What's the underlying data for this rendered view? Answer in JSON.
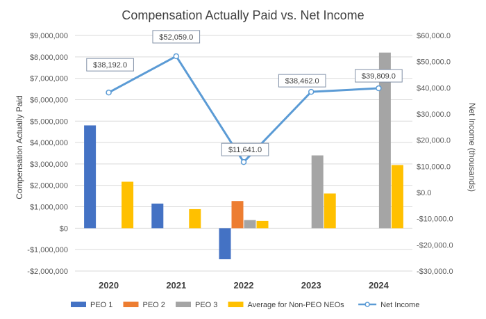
{
  "chart_data": {
    "type": "bar",
    "title": "Compensation Actually Paid vs. Net Income",
    "categories": [
      "2020",
      "2021",
      "2022",
      "2023",
      "2024"
    ],
    "ylabel": "Compensation Actually Paid",
    "y2label": "Net Income (thousands)",
    "ylim": [
      -2000000,
      9000000
    ],
    "y2lim": [
      -30000,
      60000
    ],
    "yticks": [
      9000000,
      8000000,
      7000000,
      6000000,
      5000000,
      4000000,
      3000000,
      2000000,
      1000000,
      0,
      -1000000,
      -2000000
    ],
    "ytick_labels": [
      "$9,000,000",
      "$8,000,000",
      "$7,000,000",
      "$6,000,000",
      "$5,000,000",
      "$4,000,000",
      "$3,000,000",
      "$2,000,000",
      "$1,000,000",
      "$0",
      "-$1,000,000",
      "-$2,000,000"
    ],
    "y2ticks": [
      60000,
      50000,
      40000,
      30000,
      20000,
      10000,
      0,
      -10000,
      -20000,
      -30000
    ],
    "y2tick_labels": [
      "$60,000.0",
      "$50,000.0",
      "$40,000.0",
      "$30,000.0",
      "$20,000.0",
      "$10,000.0",
      "$0.0",
      "-$10,000.0",
      "-$20,000.0",
      "-$30,000.0"
    ],
    "grid": true,
    "legend_position": "bottom",
    "series": [
      {
        "name": "PEO 1",
        "color": "#4472C4",
        "values": [
          4800000,
          1150000,
          -1450000,
          null,
          null
        ]
      },
      {
        "name": "PEO 2",
        "color": "#ED7D31",
        "values": [
          null,
          null,
          1270000,
          null,
          null
        ]
      },
      {
        "name": "PEO 3",
        "color": "#A5A5A5",
        "values": [
          null,
          null,
          380000,
          3400000,
          8200000
        ]
      },
      {
        "name": "Average for Non-PEO NEOs",
        "color": "#FFC000",
        "values": [
          2170000,
          890000,
          340000,
          1620000,
          2950000
        ]
      }
    ],
    "line_series": {
      "name": "Net Income",
      "color": "#5B9BD5",
      "axis": "secondary",
      "values": [
        38192.0,
        52059.0,
        11641.0,
        38462.0,
        39809.0
      ],
      "labels": [
        "$38,192.0",
        "$52,059.0",
        "$11,641.0",
        "$38,462.0",
        "$39,809.0"
      ]
    }
  }
}
